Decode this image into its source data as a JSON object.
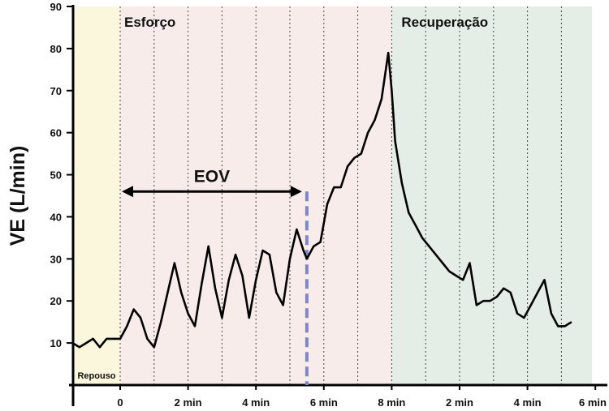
{
  "chart_data": {
    "type": "line",
    "ylabel": "VE (L/min)",
    "ylim": [
      0,
      90
    ],
    "yticks": [
      10,
      20,
      30,
      40,
      50,
      60,
      70,
      80,
      90
    ],
    "xlim": [
      -1.4,
      13.9
    ],
    "xticks": [
      {
        "x": 0,
        "label": "0",
        "phase": "esforco"
      },
      {
        "x": 2,
        "label": "2 min",
        "phase": "esforco"
      },
      {
        "x": 4,
        "label": "4 min",
        "phase": "esforco"
      },
      {
        "x": 6,
        "label": "6 min",
        "phase": "esforco"
      },
      {
        "x": 8,
        "label": "8 min",
        "phase": "esforco"
      },
      {
        "x": 10,
        "label": "2 min",
        "phase": "recuperacao"
      },
      {
        "x": 12,
        "label": "4 min",
        "phase": "recuperacao"
      },
      {
        "x": 14,
        "label": "6 min",
        "phase": "recuperacao"
      }
    ],
    "gridlines_x": [
      0,
      1,
      2,
      3,
      4,
      5,
      6,
      7,
      8,
      9,
      10,
      11,
      12,
      13,
      14
    ],
    "phases": [
      {
        "name": "Repouso",
        "start": -1.4,
        "end": 0,
        "color": "#fbf7dc"
      },
      {
        "name": "Esforço",
        "start": 0,
        "end": 8,
        "color": "#f8ecea"
      },
      {
        "name": "Recuperação",
        "start": 8,
        "end": 13.9,
        "color": "#e4eee6"
      }
    ],
    "annotation": {
      "label": "EOV",
      "x_start": 0,
      "x_end": 5.5,
      "y": 46,
      "threshold_x": 5.5
    },
    "series": [
      {
        "color": "#000000",
        "x": [
          -1.4,
          -1.2,
          -1.0,
          -0.8,
          -0.6,
          -0.4,
          -0.2,
          0.0,
          0.2,
          0.4,
          0.6,
          0.8,
          1.0,
          1.2,
          1.4,
          1.6,
          1.8,
          2.0,
          2.2,
          2.4,
          2.6,
          2.8,
          3.0,
          3.2,
          3.4,
          3.6,
          3.8,
          4.0,
          4.2,
          4.4,
          4.6,
          4.8,
          5.0,
          5.2,
          5.4,
          5.5,
          5.7,
          5.9,
          6.1,
          6.3,
          6.5,
          6.7,
          6.9,
          7.1,
          7.3,
          7.5,
          7.7,
          7.9,
          8.0,
          8.1,
          8.3,
          8.5,
          8.7,
          8.9,
          9.1,
          9.3,
          9.5,
          9.7,
          9.9,
          10.1,
          10.3,
          10.5,
          10.7,
          10.9,
          11.1,
          11.3,
          11.5,
          11.7,
          11.9,
          12.1,
          12.3,
          12.5,
          12.7,
          12.9,
          13.1,
          13.3
        ],
        "y": [
          10,
          9,
          10,
          11,
          9,
          11,
          11,
          11,
          14,
          18,
          16,
          11,
          9,
          15,
          22,
          29,
          22,
          17,
          14,
          24,
          33,
          23,
          16,
          25,
          31,
          26,
          16,
          25,
          32,
          31,
          22,
          19,
          30,
          37,
          32,
          30,
          33,
          34,
          43,
          47,
          47,
          52,
          54,
          55,
          60,
          63,
          68,
          79,
          70,
          58,
          48,
          41,
          38,
          35,
          33,
          31,
          29,
          27,
          26,
          25,
          29,
          19,
          20,
          20,
          21,
          23,
          22,
          17,
          16,
          19,
          22,
          25,
          17,
          14,
          14,
          15
        ]
      }
    ]
  }
}
